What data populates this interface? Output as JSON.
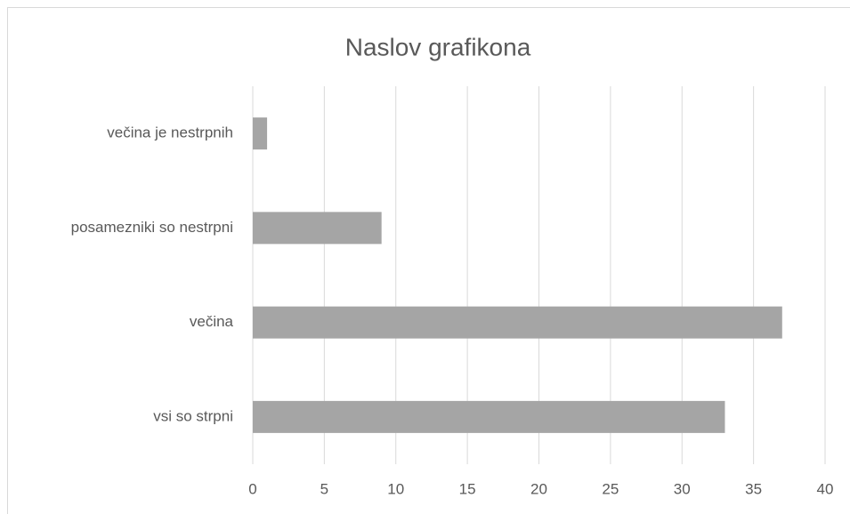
{
  "chart_data": {
    "type": "barh",
    "title": "Naslov grafikona",
    "categories": [
      "večina je nestrpnih",
      "posamezniki so nestrpni",
      "večina",
      "vsi so strpni"
    ],
    "values": [
      1,
      9,
      37,
      33
    ],
    "color": "#a5a5a5",
    "xlim": [
      0,
      40
    ],
    "xticks": [
      0,
      5,
      10,
      15,
      20,
      25,
      30,
      35,
      40
    ],
    "grid": true
  }
}
